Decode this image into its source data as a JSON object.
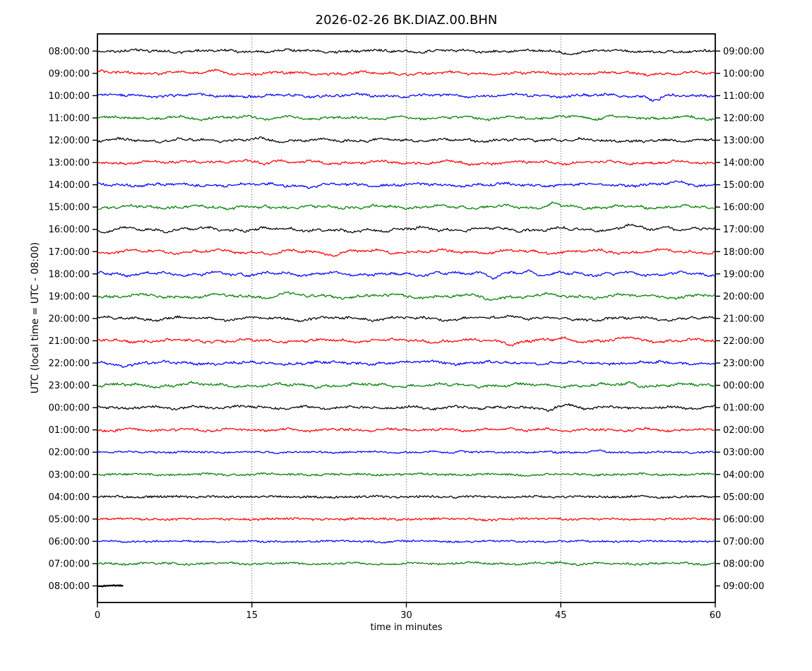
{
  "chart_data": {
    "type": "line",
    "chart_kind": "seismogram-dayplot",
    "title": "2026-02-26 BK.DIAZ.00.BHN",
    "xlabel": "time in minutes",
    "ylabel": "UTC (local time = UTC - 08:00)",
    "xlim": [
      0,
      60
    ],
    "x_ticks": [
      0,
      15,
      30,
      45,
      60
    ],
    "grid": {
      "vertical_dotted_at_minutes": [
        15,
        30,
        45
      ],
      "style": "dotted"
    },
    "interval_minutes": 60,
    "trace_color_cycle": [
      "#000000",
      "#ff0000",
      "#0000ff",
      "#008000"
    ],
    "frame_color": "#000000",
    "rows": [
      {
        "left_label": "08:00:00",
        "right_label": "09:00:00",
        "color": "#000000",
        "wander": 1.3,
        "fuzz": 1.5,
        "coverage": 1
      },
      {
        "left_label": "09:00:00",
        "right_label": "10:00:00",
        "color": "#ff0000",
        "wander": 1.6,
        "fuzz": 1.5,
        "coverage": 1
      },
      {
        "left_label": "10:00:00",
        "right_label": "11:00:00",
        "color": "#0000ff",
        "wander": 1.5,
        "fuzz": 1.5,
        "coverage": 1
      },
      {
        "left_label": "11:00:00",
        "right_label": "12:00:00",
        "color": "#008000",
        "wander": 1.6,
        "fuzz": 1.5,
        "coverage": 1
      },
      {
        "left_label": "12:00:00",
        "right_label": "13:00:00",
        "color": "#000000",
        "wander": 1.6,
        "fuzz": 1.5,
        "coverage": 1
      },
      {
        "left_label": "13:00:00",
        "right_label": "14:00:00",
        "color": "#ff0000",
        "wander": 1.6,
        "fuzz": 1.5,
        "coverage": 1
      },
      {
        "left_label": "14:00:00",
        "right_label": "15:00:00",
        "color": "#0000ff",
        "wander": 1.5,
        "fuzz": 1.5,
        "coverage": 1
      },
      {
        "left_label": "15:00:00",
        "right_label": "16:00:00",
        "color": "#008000",
        "wander": 1.8,
        "fuzz": 1.5,
        "coverage": 1
      },
      {
        "left_label": "16:00:00",
        "right_label": "17:00:00",
        "color": "#000000",
        "wander": 2.1,
        "fuzz": 1.5,
        "coverage": 1
      },
      {
        "left_label": "17:00:00",
        "right_label": "18:00:00",
        "color": "#ff0000",
        "wander": 2.1,
        "fuzz": 1.5,
        "coverage": 1
      },
      {
        "left_label": "18:00:00",
        "right_label": "19:00:00",
        "color": "#0000ff",
        "wander": 2.0,
        "fuzz": 1.5,
        "coverage": 1
      },
      {
        "left_label": "19:00:00",
        "right_label": "20:00:00",
        "color": "#008000",
        "wander": 2.2,
        "fuzz": 1.5,
        "coverage": 1
      },
      {
        "left_label": "20:00:00",
        "right_label": "21:00:00",
        "color": "#000000",
        "wander": 1.9,
        "fuzz": 1.5,
        "coverage": 1
      },
      {
        "left_label": "21:00:00",
        "right_label": "22:00:00",
        "color": "#ff0000",
        "wander": 1.6,
        "fuzz": 1.5,
        "coverage": 1
      },
      {
        "left_label": "22:00:00",
        "right_label": "23:00:00",
        "color": "#0000ff",
        "wander": 1.5,
        "fuzz": 1.5,
        "coverage": 1
      },
      {
        "left_label": "23:00:00",
        "right_label": "00:00:00",
        "color": "#008000",
        "wander": 1.9,
        "fuzz": 1.5,
        "coverage": 1
      },
      {
        "left_label": "00:00:00",
        "right_label": "01:00:00",
        "color": "#000000",
        "wander": 1.3,
        "fuzz": 1.5,
        "coverage": 1
      },
      {
        "left_label": "01:00:00",
        "right_label": "02:00:00",
        "color": "#ff0000",
        "wander": 1.3,
        "fuzz": 1.4,
        "coverage": 1
      },
      {
        "left_label": "02:00:00",
        "right_label": "03:00:00",
        "color": "#0000ff",
        "wander": 0.6,
        "fuzz": 1.2,
        "coverage": 1
      },
      {
        "left_label": "03:00:00",
        "right_label": "04:00:00",
        "color": "#008000",
        "wander": 0.7,
        "fuzz": 1.3,
        "coverage": 1
      },
      {
        "left_label": "04:00:00",
        "right_label": "05:00:00",
        "color": "#000000",
        "wander": 0.45,
        "fuzz": 1.5,
        "coverage": 1
      },
      {
        "left_label": "05:00:00",
        "right_label": "06:00:00",
        "color": "#ff0000",
        "wander": 0.55,
        "fuzz": 1.4,
        "coverage": 1
      },
      {
        "left_label": "06:00:00",
        "right_label": "07:00:00",
        "color": "#0000ff",
        "wander": 0.6,
        "fuzz": 1.2,
        "coverage": 1
      },
      {
        "left_label": "07:00:00",
        "right_label": "08:00:00",
        "color": "#008000",
        "wander": 0.9,
        "fuzz": 1.3,
        "coverage": 1
      },
      {
        "left_label": "08:00:00",
        "right_label": "09:00:00",
        "color": "#000000",
        "wander": 0.25,
        "fuzz": 0.9,
        "coverage": 0.042,
        "stroke": 2.2
      }
    ]
  }
}
